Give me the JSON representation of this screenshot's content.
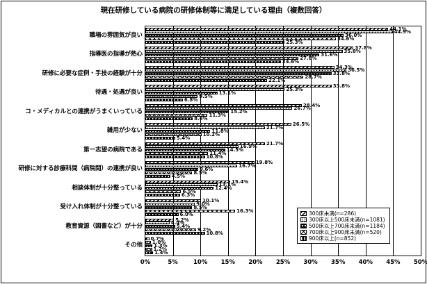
{
  "title": "現在研修している病院の研修体制等に満足している理由（複数回答）",
  "colors": {
    "foreground": "#000000",
    "background": "#ffffff"
  },
  "chart_data": {
    "type": "bar",
    "orientation": "horizontal",
    "title": "現在研修している病院の研修体制等に満足している理由（複数回答）",
    "xlabel": "",
    "ylabel": "",
    "xlim": [
      0,
      50
    ],
    "grid": true,
    "legend_position": "inside-bottom-right",
    "x_ticks": [
      "0%",
      "5%",
      "10%",
      "15%",
      "20%",
      "25%",
      "30%",
      "35%",
      "40%",
      "45%",
      "50%"
    ],
    "categories": [
      "職場の雰囲気が良い",
      "指導医の指導が熱心",
      "研修に必要な症例・手技の経験が十分",
      "待遇・処遇が良い",
      "コ・メディカルとの連携がうまくいっている",
      "雑用が少ない",
      "第一志望の病院である",
      "研修に対する診療科間（病院間）の連携が良い",
      "相談体制が十分整っている",
      "受け入れ体制が十分整っている",
      "教育資源（図書など）が十分",
      "その他"
    ],
    "series": [
      {
        "name": "300床未満(n=286)",
        "pattern": "diagonal-hatch",
        "values": [
          44.1,
          37.8,
          34.3,
          33.8,
          28.4,
          26.5,
          21.7,
          19.8,
          15.4,
          10.1,
          5.2,
          0.7
        ]
      },
      {
        "name": "300床以上500床未満(n=1081)",
        "pattern": "white-dots",
        "values": [
          44.9,
          35.8,
          36.5,
          25.3,
          26.7,
          21.7,
          16.9,
          16.7,
          13.1,
          9.0,
          4.4,
          1.0
        ]
      },
      {
        "name": "500床以上700床未満(n=1184)",
        "pattern": "dark-dots",
        "values": [
          36.0,
          31.6,
          33.8,
          13.1,
          15.2,
          11.8,
          14.5,
          9.6,
          12.4,
          8.5,
          5.4,
          1.3
        ]
      },
      {
        "name": "700床以上900床未満(n=520)",
        "pattern": "cross-lattice",
        "values": [
          34.6,
          27.8,
          28.7,
          9.5,
          11.3,
          10.2,
          11.4,
          8.5,
          6.5,
          16.3,
          9.2,
          1.2
        ]
      },
      {
        "name": "900床以上(n=852)",
        "pattern": "black-dashes",
        "values": [
          25.3,
          24.6,
          22.1,
          6.8,
          8.6,
          5.4,
          10.8,
          4.5,
          6.3,
          6.0,
          10.8,
          1.4
        ]
      }
    ]
  }
}
